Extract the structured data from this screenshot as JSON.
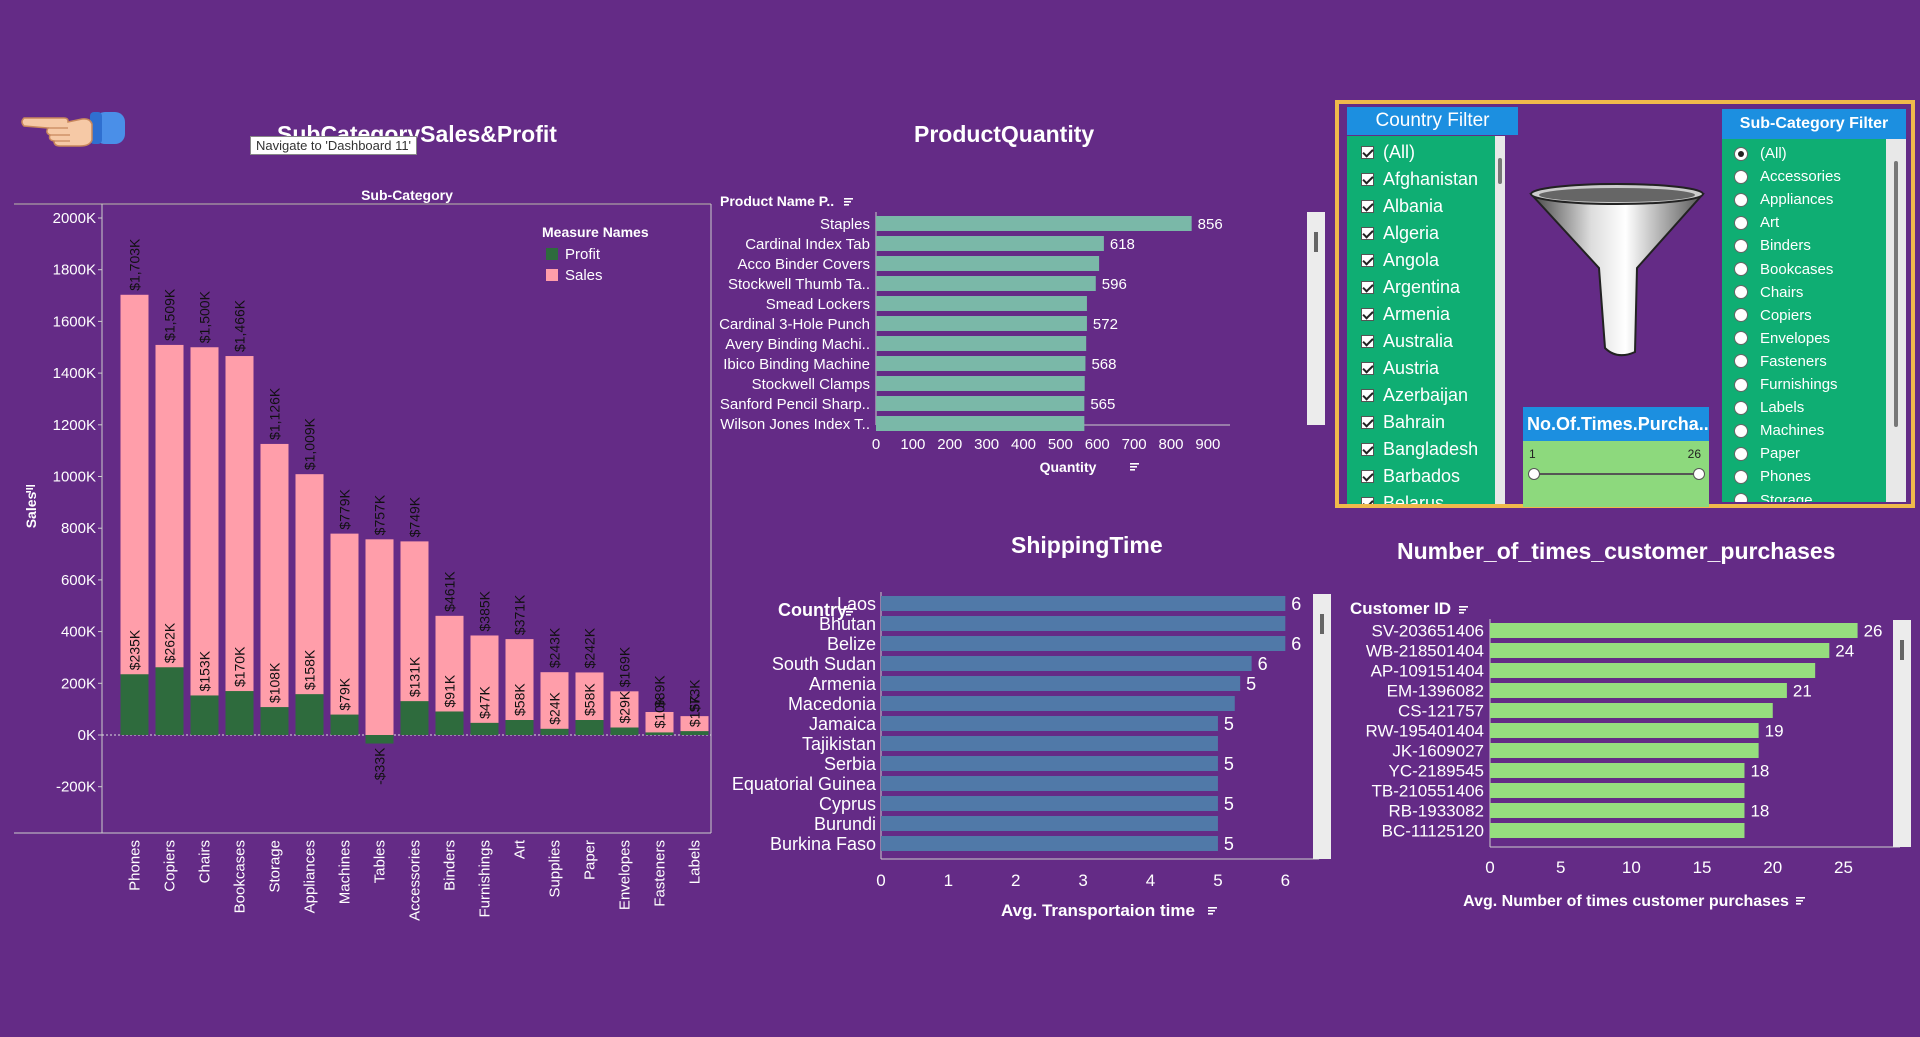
{
  "titles": {
    "subcat": "SubCategorySales&Profit",
    "quantity": "ProductQuantity",
    "shipping": "ShippingTime",
    "customer": "Number_of_times_customer_purchases"
  },
  "tooltip": "Navigate to 'Dashboard 11'",
  "chart_data": [
    {
      "type": "bar",
      "title": "SubCategorySales&Profit",
      "header": "Sub-Category",
      "ylabel": "Sales",
      "ylim": [
        -300,
        2000
      ],
      "yticks": [
        "2000K",
        "1800K",
        "1600K",
        "1400K",
        "1200K",
        "1000K",
        "800K",
        "600K",
        "400K",
        "200K",
        "0K",
        "-200K"
      ],
      "legend_title": "Measure Names",
      "legend_placement": "top-right",
      "categories": [
        "Phones",
        "Copiers",
        "Chairs",
        "Bookcases",
        "Storage",
        "Appliances",
        "Machines",
        "Tables",
        "Accessories",
        "Binders",
        "Furnishings",
        "Art",
        "Supplies",
        "Paper",
        "Envelopes",
        "Fasteners",
        "Labels"
      ],
      "series": [
        {
          "name": "Sales",
          "color": "#ff9eaa",
          "values": [
            1703,
            1509,
            1500,
            1466,
            1126,
            1009,
            779,
            757,
            749,
            461,
            385,
            371,
            243,
            242,
            169,
            89,
            73
          ],
          "labels": [
            "$1,703K",
            "$1,509K",
            "$1,500K",
            "$1,466K",
            "$1,126K",
            "$1,009K",
            "$779K",
            "$757K",
            "$749K",
            "$461K",
            "$385K",
            "$371K",
            "$243K",
            "$242K",
            "$169K",
            "$89K",
            "$73K"
          ]
        },
        {
          "name": "Profit",
          "color": "#2e6b3d",
          "values": [
            235,
            262,
            153,
            170,
            108,
            158,
            79,
            -33,
            131,
            91,
            47,
            58,
            24,
            58,
            29,
            10,
            15
          ],
          "labels": [
            "$235K",
            "$262K",
            "$153K",
            "$170K",
            "$108K",
            "$158K",
            "$79K",
            "-$33K",
            "$131K",
            "$91K",
            "$47K",
            "$58K",
            "$24K",
            "$58K",
            "$29K",
            "$10K",
            "$15K"
          ]
        }
      ]
    },
    {
      "type": "bar",
      "orientation": "horizontal",
      "title": "ProductQuantity",
      "row_header": "Product Name P..",
      "xlabel": "Quantity",
      "xlim": [
        0,
        960
      ],
      "xticks": [
        0,
        100,
        200,
        300,
        400,
        500,
        600,
        700,
        800,
        900
      ],
      "color": "#7ab8a8",
      "categories": [
        "Staples",
        "Cardinal Index Tab",
        "Acco Binder Covers",
        "Stockwell Thumb Ta..",
        "Smead Lockers",
        "Cardinal 3-Hole Punch",
        "Avery Binding Machi..",
        "Ibico Binding Machine",
        "Stockwell Clamps",
        "Sanford Pencil Sharp..",
        "Wilson Jones Index T.."
      ],
      "values": [
        856,
        618,
        605,
        596,
        572,
        572,
        570,
        568,
        566,
        565,
        565
      ],
      "labels": [
        "856",
        "618",
        "",
        "596",
        "",
        "572",
        "",
        "568",
        "",
        "565",
        ""
      ]
    },
    {
      "type": "bar",
      "orientation": "horizontal",
      "title": "ShippingTime",
      "row_header": "Country",
      "xlabel": "Avg. Transportaion time",
      "xlim": [
        0,
        6.5
      ],
      "xticks": [
        0,
        1,
        2,
        3,
        4,
        5,
        6
      ],
      "color": "#5079a8",
      "categories": [
        "Laos",
        "Bhutan",
        "Belize",
        "South Sudan",
        "Armenia",
        "Macedonia",
        "Jamaica",
        "Tajikistan",
        "Serbia",
        "Equatorial Guinea",
        "Cyprus",
        "Burundi",
        "Burkina Faso"
      ],
      "values": [
        6,
        6,
        6,
        5.5,
        5.33,
        5.25,
        5,
        5,
        5,
        5,
        5,
        5,
        5
      ],
      "labels": [
        "6",
        "",
        "6",
        "6",
        "5",
        "",
        "5",
        "",
        "5",
        "",
        "5",
        "",
        "5"
      ]
    },
    {
      "type": "bar",
      "orientation": "horizontal",
      "title": "Number_of_times_customer_purchases",
      "row_header": "Customer ID",
      "xlabel": "Avg. Number of times customer purchases",
      "xlim": [
        0,
        29
      ],
      "xticks": [
        0,
        5,
        10,
        15,
        20,
        25
      ],
      "color": "#96dd7e",
      "categories": [
        "SV-203651406",
        "WB-218501404",
        "AP-109151404",
        "EM-1396082",
        "CS-121757",
        "RW-195401404",
        "JK-1609027",
        "YC-2189545",
        "TB-210551406",
        "RB-1933082",
        "BC-11125120"
      ],
      "values": [
        26,
        24,
        23,
        21,
        20,
        19,
        19,
        18,
        18,
        18,
        18
      ],
      "labels": [
        "26",
        "24",
        "",
        "21",
        "",
        "19",
        "",
        "18",
        "",
        "18",
        ""
      ]
    }
  ],
  "country_filter": {
    "title": "Country Filter",
    "items": [
      "(All)",
      "Afghanistan",
      "Albania",
      "Algeria",
      "Angola",
      "Argentina",
      "Armenia",
      "Australia",
      "Austria",
      "Azerbaijan",
      "Bahrain",
      "Bangladesh",
      "Barbados",
      "Belarus"
    ]
  },
  "subcat_filter": {
    "title": "Sub-Category Filter",
    "selected": "(All)",
    "items": [
      "(All)",
      "Accessories",
      "Appliances",
      "Art",
      "Binders",
      "Bookcases",
      "Chairs",
      "Copiers",
      "Envelopes",
      "Fasteners",
      "Furnishings",
      "Labels",
      "Machines",
      "Paper",
      "Phones",
      "Storage"
    ]
  },
  "slider": {
    "title": "No.Of.Times.Purcha..",
    "min_label": "1",
    "max_label": "26"
  },
  "icons": {
    "nav": "pointing-hand-icon",
    "funnel": "funnel-icon",
    "sort": "sort-icon"
  }
}
